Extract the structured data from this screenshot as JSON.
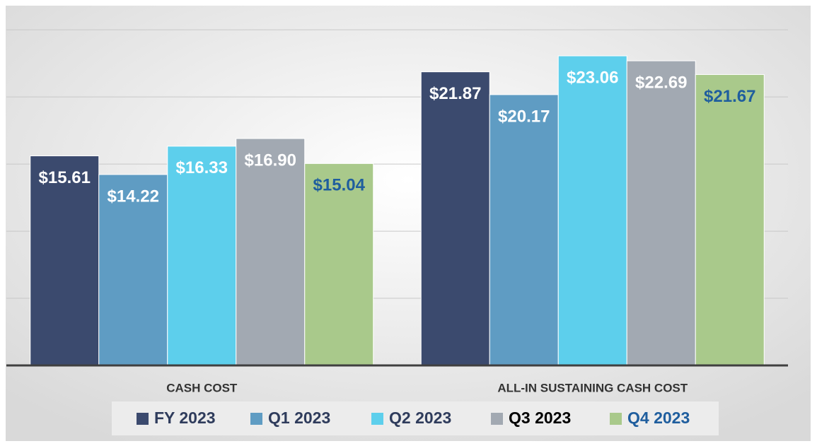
{
  "chart_data": {
    "type": "bar",
    "categories": [
      "CASH COST",
      "ALL-IN SUSTAINING CASH COST"
    ],
    "ylim": [
      0,
      26.8
    ],
    "yticks": [
      0,
      5,
      10,
      15,
      20,
      25
    ],
    "grid": true,
    "series": [
      {
        "name": "FY 2023",
        "color": "#3b4a6e",
        "label_color": "#ffffff",
        "legend_text_color": "#2f3c5c",
        "values": [
          15.61,
          21.87
        ],
        "value_labels": [
          "$15.61",
          "$21.87"
        ]
      },
      {
        "name": "Q1 2023",
        "color": "#5f9cc3",
        "label_color": "#ffffff",
        "legend_text_color": "#2f3c5c",
        "values": [
          14.22,
          20.17
        ],
        "value_labels": [
          "$14.22",
          "$20.17"
        ]
      },
      {
        "name": "Q2 2023",
        "color": "#5dcfec",
        "label_color": "#ffffff",
        "legend_text_color": "#2f3c5c",
        "values": [
          16.33,
          23.06
        ],
        "value_labels": [
          "$16.33",
          "$23.06"
        ]
      },
      {
        "name": "Q3 2023",
        "color": "#a2a9b2",
        "label_color": "#ffffff",
        "legend_text_color": "#000000",
        "values": [
          16.9,
          22.69
        ],
        "value_labels": [
          "$16.90",
          "$22.69"
        ]
      },
      {
        "name": "Q4 2023",
        "color": "#a9c98b",
        "label_color": "#1f5e9e",
        "legend_text_color": "#1f5e9e",
        "values": [
          15.04,
          21.67
        ],
        "value_labels": [
          "$15.04",
          "$21.67"
        ]
      }
    ]
  }
}
